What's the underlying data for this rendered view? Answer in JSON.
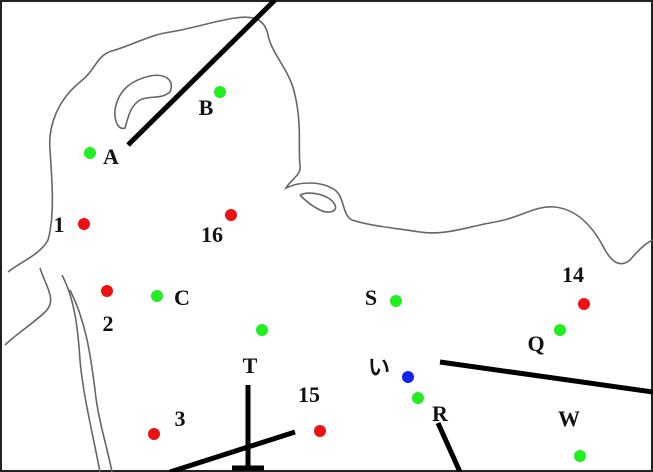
{
  "labels": [
    "A",
    "B",
    "C",
    "S",
    "T",
    "Q",
    "R",
    "W",
    "い",
    "1",
    "2",
    "3",
    "14",
    "15",
    "16"
  ]
}
